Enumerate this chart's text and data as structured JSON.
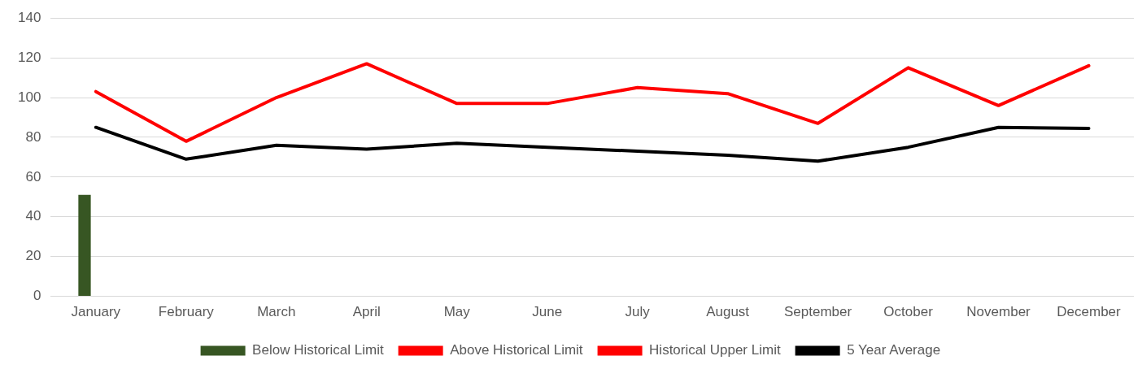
{
  "chart_data": {
    "type": "bar",
    "categories": [
      "January",
      "February",
      "March",
      "April",
      "May",
      "June",
      "July",
      "August",
      "September",
      "October",
      "November",
      "December"
    ],
    "series": [
      {
        "name": "Below Historical Limit",
        "color": "#375623",
        "values": [
          51,
          null,
          null,
          null,
          null,
          null,
          null,
          null,
          null,
          null,
          null,
          null
        ]
      },
      {
        "name": "Above Historical Limit",
        "color": "#ff0000",
        "values": [
          null,
          null,
          null,
          null,
          null,
          null,
          null,
          null,
          null,
          null,
          null,
          null
        ]
      },
      {
        "name": "Historical Upper Limit",
        "type": "line",
        "color": "#ff0000",
        "values": [
          103,
          78,
          100,
          117,
          97,
          97,
          105,
          102,
          87,
          115,
          96,
          116
        ]
      },
      {
        "name": "5 Year Average",
        "type": "line",
        "color": "#000000",
        "values": [
          85,
          69,
          76,
          74,
          77,
          75,
          73,
          71,
          68,
          75,
          85,
          84.5
        ]
      }
    ],
    "ylim": [
      0,
      140
    ],
    "yticks": [
      0,
      20,
      40,
      60,
      80,
      100,
      120,
      140
    ],
    "grid": "y",
    "legend": "bottom",
    "marker": "none",
    "line_style": "solid"
  }
}
